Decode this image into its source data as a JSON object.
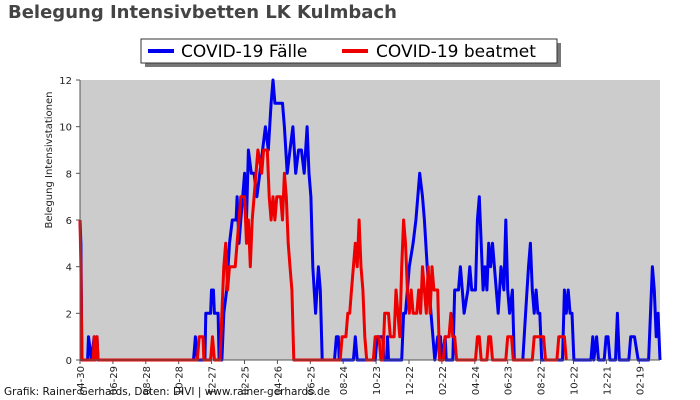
{
  "chart_data": {
    "type": "line",
    "title": "Belegung Intensivbetten LK Kulmbach",
    "ylabel": "Belegung Intensivstationen",
    "xlabel": "",
    "ylim": [
      0,
      12
    ],
    "y_ticks": [
      0,
      2,
      4,
      6,
      8,
      10,
      12
    ],
    "x_tick_labels": [
      "04-30",
      "06-29",
      "08-28",
      "10-28",
      "12-27",
      "02-25",
      "04-26",
      "06-25",
      "08-24",
      "10-23",
      "12-22",
      "02-22",
      "04-24",
      "06-23",
      "08-22",
      "10-22",
      "12-21",
      "02-19"
    ],
    "grid": false,
    "legend_position": "top-center",
    "credit": "Grafik: Rainer Gerhards, Daten: DIVI | www.rainer-gerhards.de",
    "colors": {
      "plot_background": "#cccccc",
      "cases": "#0000ee",
      "ventilated": "#ee0000"
    },
    "series": [
      {
        "name": "COVID-19 Fälle",
        "points": [
          [
            0,
            6
          ],
          [
            1,
            5
          ],
          [
            2,
            0
          ],
          [
            8,
            0
          ],
          [
            9,
            1
          ],
          [
            12,
            0
          ],
          [
            15,
            1
          ],
          [
            16,
            0
          ],
          [
            18,
            1
          ],
          [
            19,
            0
          ],
          [
            120,
            0
          ],
          [
            122,
            1
          ],
          [
            124,
            0
          ],
          [
            132,
            0
          ],
          [
            133,
            2
          ],
          [
            138,
            2
          ],
          [
            139,
            3
          ],
          [
            141,
            3
          ],
          [
            142,
            2
          ],
          [
            146,
            2
          ],
          [
            147,
            0
          ],
          [
            150,
            0
          ],
          [
            152,
            2
          ],
          [
            155,
            3
          ],
          [
            158,
            5
          ],
          [
            161,
            6
          ],
          [
            165,
            6
          ],
          [
            166,
            7
          ],
          [
            168,
            5
          ],
          [
            170,
            6
          ],
          [
            174,
            8
          ],
          [
            176,
            6
          ],
          [
            178,
            9
          ],
          [
            181,
            8
          ],
          [
            184,
            8
          ],
          [
            187,
            7
          ],
          [
            190,
            8
          ],
          [
            193,
            9
          ],
          [
            196,
            10
          ],
          [
            199,
            9
          ],
          [
            202,
            11
          ],
          [
            204,
            12
          ],
          [
            206,
            11
          ],
          [
            214,
            11
          ],
          [
            216,
            10
          ],
          [
            219,
            8
          ],
          [
            222,
            9
          ],
          [
            225,
            10
          ],
          [
            228,
            8
          ],
          [
            231,
            9
          ],
          [
            234,
            9
          ],
          [
            237,
            8
          ],
          [
            240,
            10
          ],
          [
            242,
            8
          ],
          [
            244,
            7
          ],
          [
            246,
            4
          ],
          [
            249,
            2
          ],
          [
            252,
            4
          ],
          [
            254,
            3
          ],
          [
            256,
            0
          ],
          [
            269,
            0
          ],
          [
            271,
            1
          ],
          [
            273,
            1
          ],
          [
            274,
            0
          ],
          [
            289,
            0
          ],
          [
            291,
            1
          ],
          [
            293,
            0
          ],
          [
            312,
            0
          ],
          [
            314,
            1
          ],
          [
            320,
            1
          ],
          [
            321,
            0
          ],
          [
            324,
            0
          ],
          [
            325,
            1
          ],
          [
            326,
            0
          ],
          [
            340,
            0
          ],
          [
            342,
            2
          ],
          [
            344,
            2
          ],
          [
            346,
            3
          ],
          [
            348,
            4
          ],
          [
            352,
            5
          ],
          [
            355,
            6
          ],
          [
            357,
            7
          ],
          [
            359,
            8
          ],
          [
            362,
            7
          ],
          [
            364,
            6
          ],
          [
            367,
            4
          ],
          [
            369,
            3
          ],
          [
            371,
            2
          ],
          [
            373,
            1
          ],
          [
            375,
            0
          ],
          [
            378,
            1
          ],
          [
            381,
            1
          ],
          [
            382,
            0
          ],
          [
            386,
            1
          ],
          [
            387,
            0
          ],
          [
            394,
            0
          ],
          [
            396,
            3
          ],
          [
            400,
            3
          ],
          [
            402,
            4
          ],
          [
            404,
            3
          ],
          [
            406,
            2
          ],
          [
            410,
            3
          ],
          [
            412,
            4
          ],
          [
            414,
            3
          ],
          [
            418,
            3
          ],
          [
            420,
            6
          ],
          [
            422,
            7
          ],
          [
            424,
            5
          ],
          [
            426,
            3
          ],
          [
            428,
            4
          ],
          [
            430,
            3
          ],
          [
            432,
            5
          ],
          [
            434,
            4
          ],
          [
            436,
            5
          ],
          [
            438,
            4
          ],
          [
            440,
            3
          ],
          [
            442,
            2
          ],
          [
            445,
            4
          ],
          [
            448,
            3
          ],
          [
            450,
            6
          ],
          [
            452,
            3
          ],
          [
            454,
            2
          ],
          [
            457,
            3
          ],
          [
            459,
            0
          ],
          [
            468,
            0
          ],
          [
            471,
            2
          ],
          [
            474,
            4
          ],
          [
            476,
            5
          ],
          [
            478,
            3
          ],
          [
            480,
            2
          ],
          [
            482,
            3
          ],
          [
            484,
            2
          ],
          [
            486,
            2
          ],
          [
            488,
            0
          ],
          [
            510,
            0
          ],
          [
            512,
            3
          ],
          [
            514,
            2
          ],
          [
            516,
            3
          ],
          [
            518,
            2
          ],
          [
            520,
            2
          ],
          [
            522,
            0
          ],
          [
            540,
            0
          ],
          [
            542,
            1
          ],
          [
            543,
            0
          ],
          [
            546,
            1
          ],
          [
            548,
            0
          ],
          [
            554,
            0
          ],
          [
            556,
            1
          ],
          [
            558,
            1
          ],
          [
            560,
            0
          ],
          [
            566,
            0
          ],
          [
            568,
            2
          ],
          [
            570,
            0
          ],
          [
            580,
            0
          ],
          [
            582,
            1
          ],
          [
            586,
            1
          ],
          [
            590,
            0
          ],
          [
            601,
            0
          ],
          [
            603,
            2
          ],
          [
            605,
            4
          ],
          [
            607,
            3
          ],
          [
            609,
            1
          ],
          [
            611,
            2
          ],
          [
            613,
            0
          ]
        ]
      },
      {
        "name": "COVID-19 beatmet",
        "points": [
          [
            0,
            6
          ],
          [
            1,
            4
          ],
          [
            2,
            0
          ],
          [
            14,
            0
          ],
          [
            15,
            1
          ],
          [
            16,
            0
          ],
          [
            18,
            1
          ],
          [
            19,
            0
          ],
          [
            124,
            0
          ],
          [
            126,
            1
          ],
          [
            130,
            1
          ],
          [
            131,
            0
          ],
          [
            138,
            0
          ],
          [
            140,
            1
          ],
          [
            142,
            0
          ],
          [
            148,
            0
          ],
          [
            149,
            1
          ],
          [
            150,
            2
          ],
          [
            152,
            4
          ],
          [
            154,
            5
          ],
          [
            156,
            3
          ],
          [
            158,
            4
          ],
          [
            164,
            4
          ],
          [
            166,
            5
          ],
          [
            168,
            6
          ],
          [
            170,
            7
          ],
          [
            174,
            7
          ],
          [
            176,
            5
          ],
          [
            178,
            6
          ],
          [
            180,
            4
          ],
          [
            182,
            6
          ],
          [
            184,
            7
          ],
          [
            186,
            8
          ],
          [
            188,
            9
          ],
          [
            192,
            8
          ],
          [
            194,
            9
          ],
          [
            198,
            9
          ],
          [
            200,
            7
          ],
          [
            202,
            6
          ],
          [
            204,
            7
          ],
          [
            206,
            6
          ],
          [
            208,
            7
          ],
          [
            212,
            7
          ],
          [
            214,
            6
          ],
          [
            216,
            8
          ],
          [
            218,
            7
          ],
          [
            220,
            5
          ],
          [
            222,
            4
          ],
          [
            224,
            3
          ],
          [
            226,
            0
          ],
          [
            275,
            0
          ],
          [
            277,
            1
          ],
          [
            281,
            1
          ],
          [
            283,
            2
          ],
          [
            285,
            2
          ],
          [
            287,
            3
          ],
          [
            289,
            4
          ],
          [
            291,
            5
          ],
          [
            293,
            4
          ],
          [
            295,
            6
          ],
          [
            297,
            4
          ],
          [
            299,
            3
          ],
          [
            301,
            1
          ],
          [
            303,
            0
          ],
          [
            310,
            0
          ],
          [
            312,
            1
          ],
          [
            316,
            1
          ],
          [
            318,
            0
          ],
          [
            320,
            0
          ],
          [
            322,
            2
          ],
          [
            326,
            2
          ],
          [
            328,
            1
          ],
          [
            332,
            1
          ],
          [
            334,
            3
          ],
          [
            336,
            2
          ],
          [
            338,
            1
          ],
          [
            340,
            4
          ],
          [
            342,
            6
          ],
          [
            344,
            5
          ],
          [
            346,
            3
          ],
          [
            348,
            2
          ],
          [
            350,
            3
          ],
          [
            352,
            2
          ],
          [
            356,
            2
          ],
          [
            358,
            3
          ],
          [
            360,
            2
          ],
          [
            362,
            4
          ],
          [
            364,
            3
          ],
          [
            366,
            2
          ],
          [
            368,
            4
          ],
          [
            370,
            2
          ],
          [
            372,
            4
          ],
          [
            374,
            3
          ],
          [
            378,
            3
          ],
          [
            380,
            0
          ],
          [
            384,
            0
          ],
          [
            386,
            1
          ],
          [
            390,
            1
          ],
          [
            392,
            2
          ],
          [
            394,
            1
          ],
          [
            396,
            1
          ],
          [
            398,
            0
          ],
          [
            418,
            0
          ],
          [
            420,
            1
          ],
          [
            422,
            1
          ],
          [
            424,
            0
          ],
          [
            430,
            0
          ],
          [
            432,
            1
          ],
          [
            434,
            1
          ],
          [
            436,
            0
          ],
          [
            450,
            0
          ],
          [
            452,
            1
          ],
          [
            456,
            1
          ],
          [
            458,
            0
          ],
          [
            478,
            0
          ],
          [
            480,
            1
          ],
          [
            490,
            1
          ],
          [
            492,
            0
          ],
          [
            504,
            0
          ],
          [
            506,
            1
          ],
          [
            512,
            1
          ],
          [
            514,
            0
          ]
        ]
      }
    ]
  }
}
